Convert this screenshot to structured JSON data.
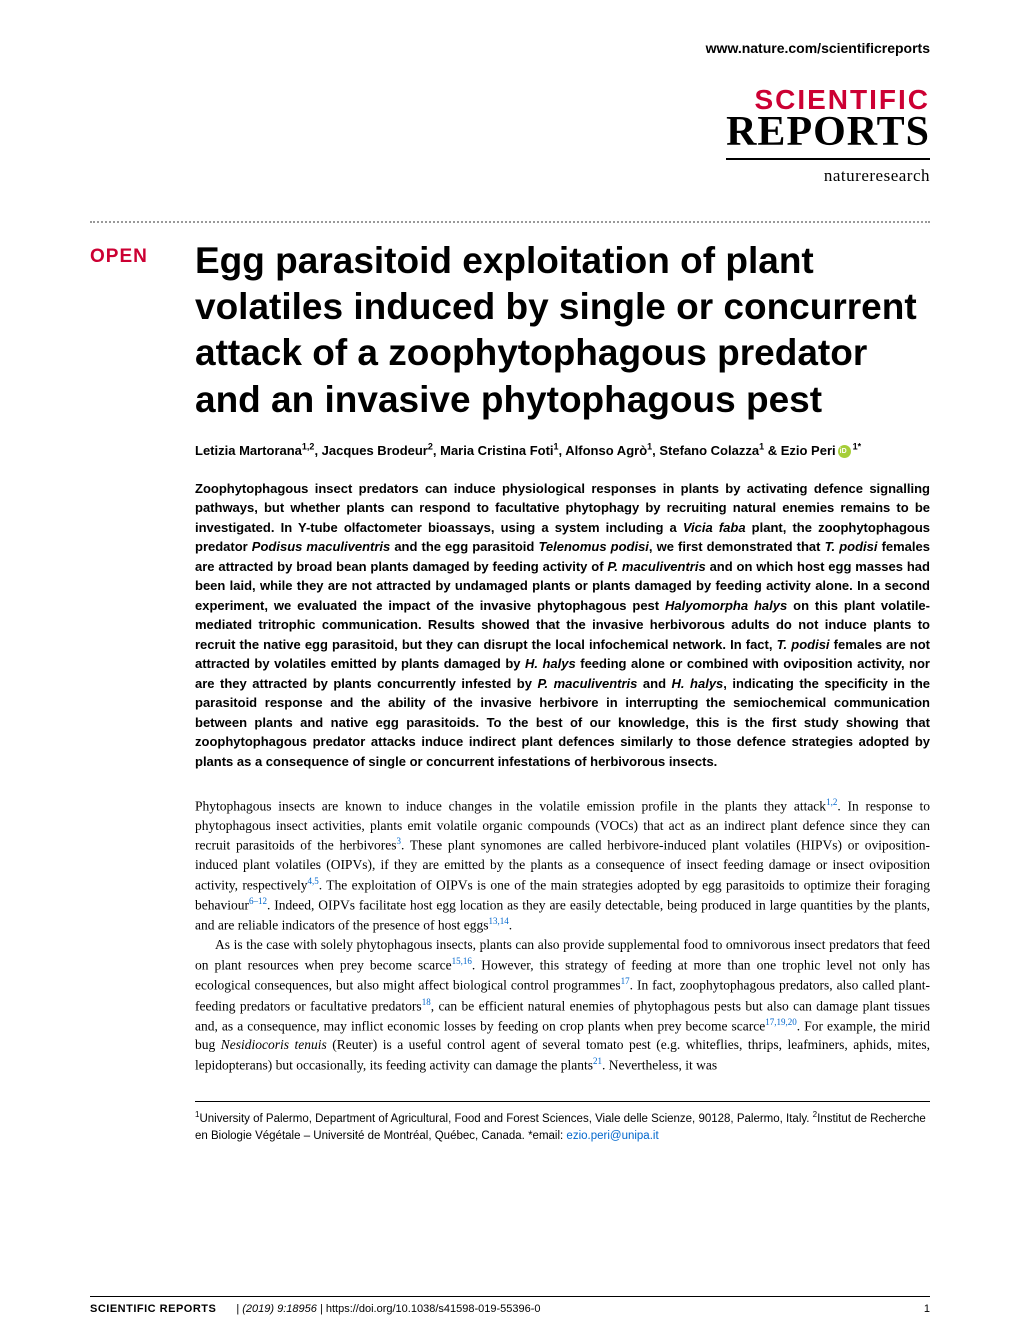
{
  "header": {
    "url": "www.nature.com/scientificreports"
  },
  "logo": {
    "line1": "SCIENTIFIC",
    "line2": "REPORTS",
    "line3": "natureresearch"
  },
  "badge": {
    "open": "OPEN"
  },
  "article": {
    "title": "Egg parasitoid exploitation of plant volatiles induced by single or concurrent attack of a zoophytophagous predator and an invasive phytophagous pest",
    "authors_html": "Letizia Martorana<sup>1,2</sup>, Jacques Brodeur<sup>2</sup>, Maria Cristina Foti<sup>1</sup>, Alfonso Agrò<sup>1</sup>, Stefano Colazza<sup>1</sup> & Ezio Peri",
    "authors_suffix": "<sup>1*</sup>",
    "abstract": "Zoophytophagous insect predators can induce physiological responses in plants by activating defence signalling pathways, but whether plants can respond to facultative phytophagy by recruiting natural enemies remains to be investigated. In Y-tube olfactometer bioassays, using a system including a <em>Vicia faba</em> plant, the zoophytophagous predator <em>Podisus maculiventris</em> and the egg parasitoid <em>Telenomus podisi</em>, we first demonstrated that <em>T. podisi</em> females are attracted by broad bean plants damaged by feeding activity of <em>P. maculiventris</em> and on which host egg masses had been laid, while they are not attracted by undamaged plants or plants damaged by feeding activity alone. In a second experiment, we evaluated the impact of the invasive phytophagous pest <em>Halyomorpha halys</em> on this plant volatile-mediated tritrophic communication. Results showed that the invasive herbivorous adults do not induce plants to recruit the native egg parasitoid, but they can disrupt the local infochemical network. In fact, <em>T. podisi</em> females are not attracted by volatiles emitted by plants damaged by <em>H. halys</em> feeding alone or combined with oviposition activity, nor are they attracted by plants concurrently infested by <em>P. maculiventris</em> and <em>H. halys</em>, indicating the specificity in the parasitoid response and the ability of the invasive herbivore in interrupting the semiochemical communication between plants and native egg parasitoids. To the best of our knowledge, this is the first study showing that zoophytophagous predator attacks induce indirect plant defences similarly to those defence strategies adopted by plants as a consequence of single or concurrent infestations of herbivorous insects.",
    "body_p1": "Phytophagous insects are known to induce changes in the volatile emission profile in the plants they attack<sup>1,2</sup>. In response to phytophagous insect activities, plants emit volatile organic compounds (VOCs) that act as an indirect plant defence since they can recruit parasitoids of the herbivores<sup>3</sup>. These plant synomones are called herbivore-induced plant volatiles (HIPVs) or oviposition-induced plant volatiles (OIPVs), if they are emitted by the plants as a consequence of insect feeding damage or insect oviposition activity, respectively<sup>4,5</sup>. The exploitation of OIPVs is one of the main strategies adopted by egg parasitoids to optimize their foraging behaviour<sup>6–12</sup>. Indeed, OIPVs facilitate host egg location as they are easily detectable, being produced in large quantities by the plants, and are reliable indicators of the presence of host eggs<sup>13,14</sup>.",
    "body_p2": "As is the case with solely phytophagous insects, plants can also provide supplemental food to omnivorous insect predators that feed on plant resources when prey become scarce<sup>15,16</sup>. However, this strategy of feeding at more than one trophic level not only has ecological consequences, but also might affect biological control programmes<sup>17</sup>. In fact, zoophytophagous predators, also called plant-feeding predators or facultative predators<sup>18</sup>, can be efficient natural enemies of phytophagous pests but also can damage plant tissues and, as a consequence, may inflict economic losses by feeding on crop plants when prey become scarce<sup>17,19,20</sup>. For example, the mirid bug <em>Nesidiocoris tenuis</em> (Reuter) is a useful control agent of several tomato pest (e.g. whiteflies, thrips, leafminers, aphids, mites, lepidopterans) but occasionally, its feeding activity can damage the plants<sup>21</sup>. Nevertheless, it was",
    "affiliations": "<sup>1</sup>University of Palermo, Department of Agricultural, Food and Forest Sciences, Viale delle Scienze, 90128, Palermo, Italy. <sup>2</sup>Institut de Recherche en Biologie Végétale – Université de Montréal, Québec, Canada. *email: ",
    "email": "ezio.peri@unipa.it"
  },
  "footer": {
    "journal": "SCIENTIFIC REPORTS",
    "separator": "|",
    "citation": "(2019) 9:18956 ",
    "doi": "| https://doi.org/10.1038/s41598-019-55396-0",
    "page": "1"
  },
  "colors": {
    "brand_red": "#cc0033",
    "link_blue": "#0066cc",
    "orcid_green": "#a6ce39",
    "text": "#000000",
    "background": "#ffffff"
  }
}
